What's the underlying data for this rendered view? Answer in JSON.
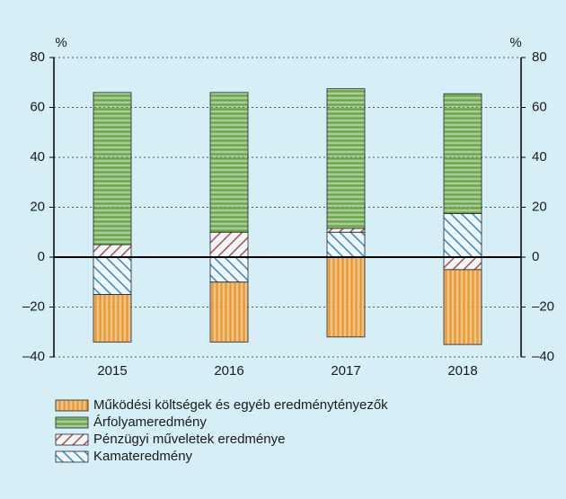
{
  "chart_data": {
    "type": "bar",
    "stacked": true,
    "categories": [
      "2015",
      "2016",
      "2017",
      "2018"
    ],
    "series": [
      {
        "name": "Működési költségek és egyéb eredménytényezők",
        "color": "#f7941d",
        "pattern": "vertical",
        "values": [
          -19,
          -24,
          -32,
          -30
        ]
      },
      {
        "name": "Árfolyameredmény",
        "color": "#6aa33a",
        "pattern": "horizontal",
        "values": [
          61,
          56,
          56,
          48
        ]
      },
      {
        "name": "Pénzügyi műveletek eredménye",
        "color": "#c0504d",
        "pattern": "diagonal-up",
        "values": [
          5,
          10,
          1.5,
          -5
        ]
      },
      {
        "name": "Kamateredmény",
        "color": "#3d8ccc",
        "pattern": "diagonal-down",
        "values": [
          -15,
          -10,
          10,
          17.5
        ]
      }
    ],
    "ylim": [
      -40,
      80
    ],
    "yticks": [
      {
        "value": -40,
        "label": "–40"
      },
      {
        "value": -20,
        "label": "–20"
      },
      0,
      20,
      40,
      60,
      80
    ],
    "y2lim": [
      -40,
      80
    ],
    "y2ticks": [
      {
        "value": -40,
        "label": "–40"
      },
      {
        "value": -20,
        "label": "–20"
      },
      0,
      20,
      40,
      60,
      80
    ],
    "y_unit": "%",
    "y2_unit": "%",
    "grid": true,
    "legend": "bottom"
  }
}
